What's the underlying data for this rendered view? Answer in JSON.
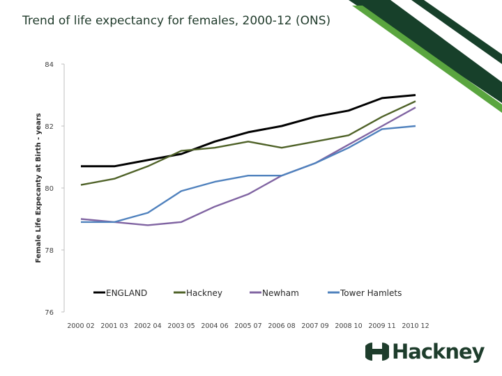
{
  "slide": {
    "title": "Trend of life expectancy for females, 2000-12 (ONS)"
  },
  "colors": {
    "stripe_dark": "#17402a",
    "stripe_light": "#5aa53f",
    "logo": "#1e3d2c"
  },
  "logo": {
    "text": "Hackney"
  },
  "chart_data": {
    "type": "line",
    "title": "",
    "xlabel": "",
    "ylabel": "Female Life Expecanty at Birth - years",
    "categories": [
      "2000 02",
      "2001 03",
      "2002 04",
      "2003 05",
      "2004 06",
      "2005 07",
      "2006 08",
      "2007 09",
      "2008 10",
      "2009 11",
      "2010 12"
    ],
    "ylim": [
      76,
      84
    ],
    "yticks": [
      "76",
      "78",
      "80",
      "82",
      "84"
    ],
    "grid": false,
    "legend_position": "bottom-inside",
    "series": [
      {
        "name": "ENGLAND",
        "color": "#000000",
        "values": [
          80.7,
          80.7,
          80.9,
          81.1,
          81.5,
          81.8,
          82.0,
          82.3,
          82.5,
          82.9,
          83.0
        ]
      },
      {
        "name": "Hackney",
        "color": "#4f6228",
        "values": [
          80.1,
          80.3,
          80.7,
          81.2,
          81.3,
          81.5,
          81.3,
          81.5,
          81.7,
          82.3,
          82.8
        ]
      },
      {
        "name": "Newham",
        "color": "#8064a2",
        "values": [
          79.0,
          78.9,
          78.8,
          78.9,
          79.4,
          79.8,
          80.4,
          80.8,
          81.4,
          82.0,
          82.6
        ]
      },
      {
        "name": "Tower Hamlets",
        "color": "#4f81bd",
        "values": [
          78.9,
          78.9,
          79.2,
          79.9,
          80.2,
          80.4,
          80.4,
          80.8,
          81.3,
          81.9,
          82.0
        ]
      }
    ]
  }
}
